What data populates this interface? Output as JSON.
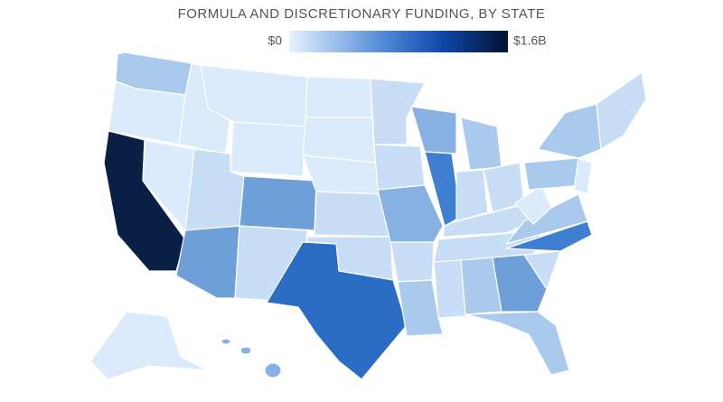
{
  "title": "FORMULA AND DISCRETIONARY FUNDING, BY STATE",
  "legend": {
    "min": {
      "value": 0,
      "label": "$0"
    },
    "max": {
      "value": 1600000000,
      "label": "$1.6B"
    }
  }
}
